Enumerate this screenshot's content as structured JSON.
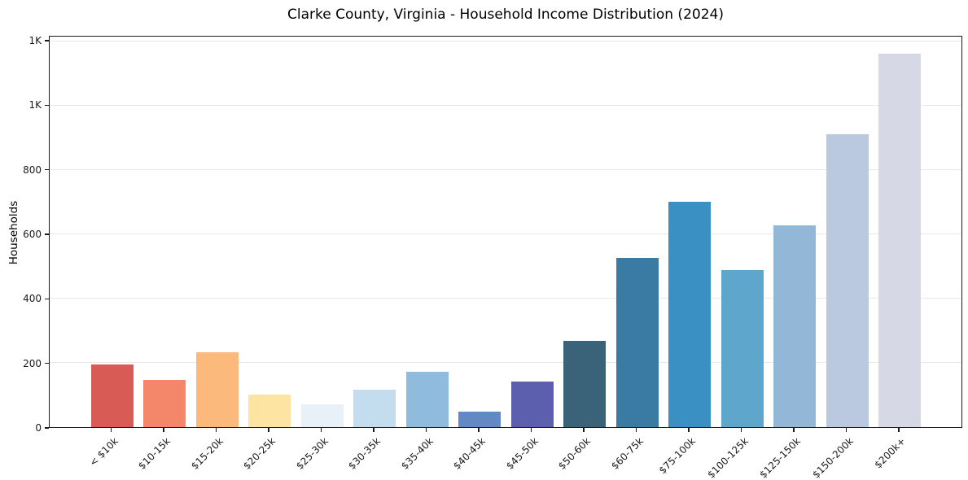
{
  "chart_data": {
    "type": "bar",
    "title": "Clarke County, Virginia - Household Income Distribution (2024)",
    "xlabel": "",
    "ylabel": "Households",
    "categories": [
      "< $10k",
      "$10-15k",
      "$15-20k",
      "$20-25k",
      "$25-30k",
      "$30-35k",
      "$35-40k",
      "$40-45k",
      "$45-50k",
      "$50-60k",
      "$60-75k",
      "$75-100k",
      "$100-125k",
      "$125-150k",
      "$150-200k",
      "$200k+"
    ],
    "values": [
      193,
      145,
      231,
      102,
      71,
      116,
      172,
      49,
      141,
      266,
      525,
      699,
      486,
      624,
      908,
      1156
    ],
    "bar_colors": [
      "#d85c55",
      "#f4876a",
      "#fbb97c",
      "#fde4a2",
      "#e7f1f7",
      "#c3ddee",
      "#8fbcdd",
      "#6289c4",
      "#5b5fae",
      "#3a6278",
      "#397ba3",
      "#3b90c3",
      "#5fa6cc",
      "#93b7d7",
      "#bac9df",
      "#d7d8e6"
    ],
    "ylim": [
      0,
      1215
    ],
    "yticks": {
      "values": [
        0,
        200,
        400,
        600,
        800,
        1000,
        1200
      ],
      "labels": [
        "0",
        "200",
        "400",
        "600",
        "800",
        "1K",
        "1K"
      ]
    },
    "grid": "horizontal-only",
    "legend": "none",
    "x_tick_rotation_deg": 45,
    "spine_color": "#1a1a1a",
    "gridline_color": "#e8e8e8",
    "background_color": "#ffffff"
  }
}
